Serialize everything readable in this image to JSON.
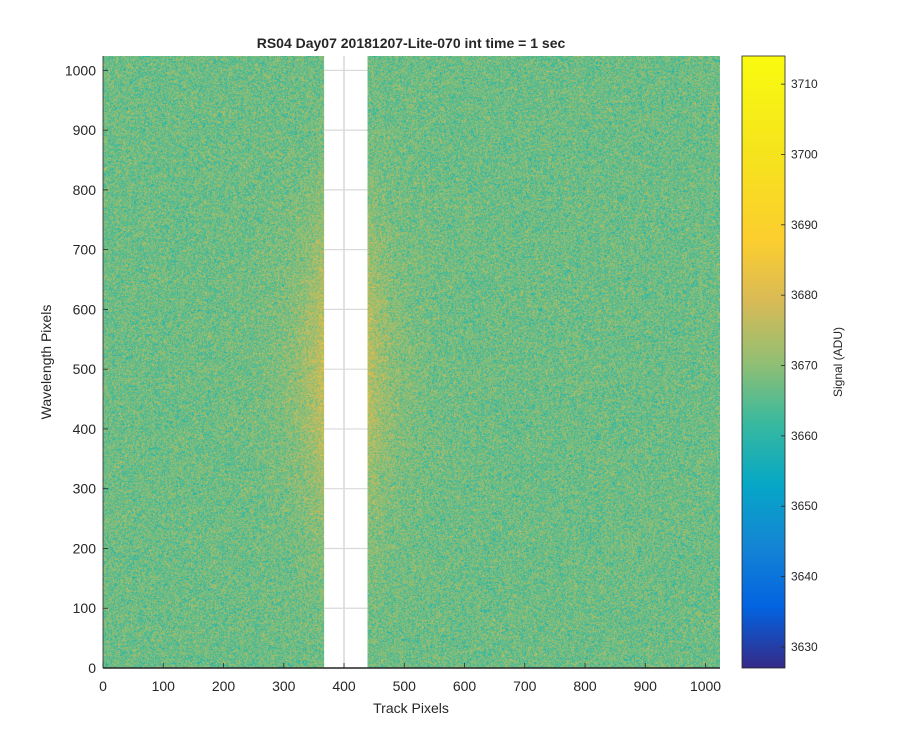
{
  "chart_data": {
    "type": "heatmap",
    "title": "RS04 Day07 20181207-Lite-070 int time = 1 sec",
    "xlabel": "Track Pixels",
    "ylabel": "Wavelength Pixels",
    "xlim": [
      0,
      1024
    ],
    "ylim": [
      0,
      1024
    ],
    "x_ticks": [
      0,
      100,
      200,
      300,
      400,
      500,
      600,
      700,
      800,
      900,
      1000
    ],
    "y_ticks": [
      0,
      100,
      200,
      300,
      400,
      500,
      600,
      700,
      800,
      900,
      1000
    ],
    "gap_columns": [
      367,
      439
    ],
    "grid": true,
    "colorbar": {
      "label": "Signal (ADU)",
      "range": [
        3627,
        3714
      ],
      "ticks": [
        3630,
        3640,
        3650,
        3660,
        3670,
        3680,
        3690,
        3700,
        3710
      ],
      "colormap": "parula"
    },
    "signal_model": {
      "background": 3667,
      "peak_x": 400,
      "peak_y": 500,
      "peak_value": 3690
    }
  }
}
